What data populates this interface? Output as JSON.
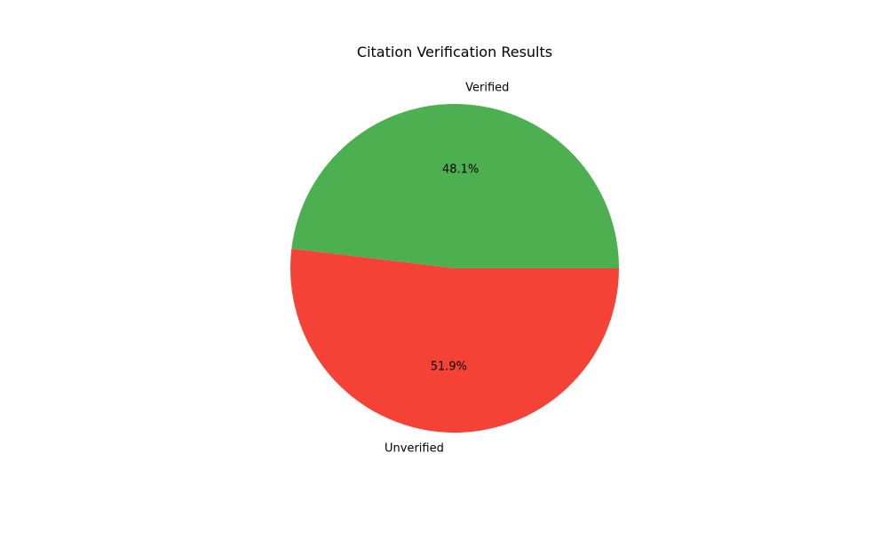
{
  "chart_data": {
    "type": "pie",
    "title": "Citation Verification Results",
    "slices": [
      {
        "label": "Verified",
        "percent_label": "48.1%",
        "value": 48.1,
        "color": "#4CAF50"
      },
      {
        "label": "Unverified",
        "percent_label": "51.9%",
        "value": 51.9,
        "color": "#F44336"
      }
    ],
    "start_angle_deg": 0,
    "direction": "counterclockwise",
    "legend": "none"
  }
}
